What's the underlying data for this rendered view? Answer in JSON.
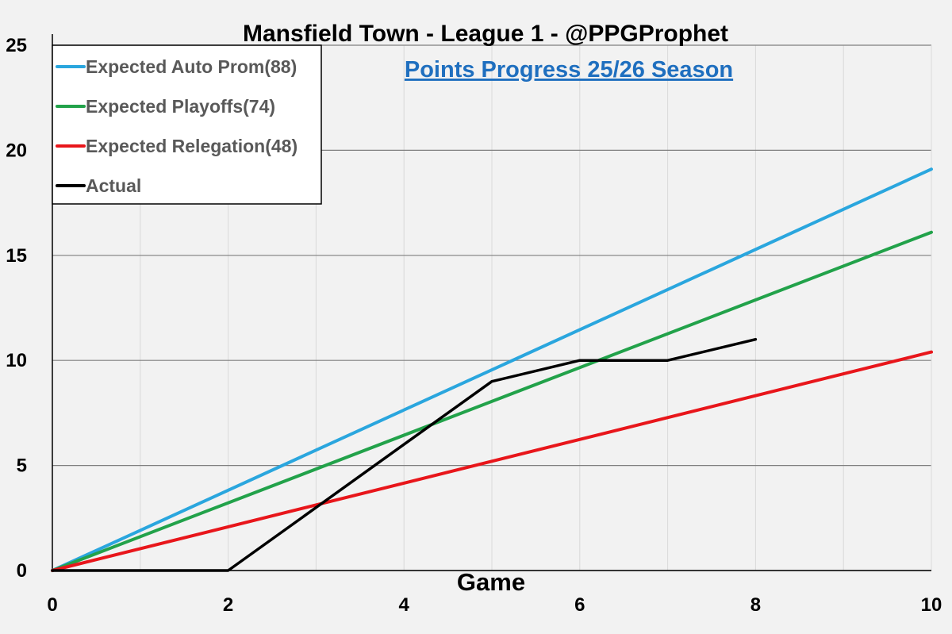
{
  "chart_data": {
    "type": "line",
    "title": "Mansfield Town - League 1 - @PPGProphet",
    "subtitle": "Points Progress 25/26 Season",
    "xlabel": "Game",
    "ylabel": "",
    "xlim": [
      0,
      10
    ],
    "ylim": [
      0,
      25
    ],
    "x_ticks": [
      "0",
      "2",
      "4",
      "6",
      "8",
      "10"
    ],
    "y_ticks": [
      "0",
      "5",
      "10",
      "15",
      "20",
      "25"
    ],
    "grid": true,
    "legend_position": "top-left",
    "series": [
      {
        "name": "Expected Auto Prom(88)",
        "color": "#2aa6de",
        "x": [
          0,
          10
        ],
        "y": [
          0,
          19.1
        ]
      },
      {
        "name": "Expected Playoffs(74)",
        "color": "#22a24a",
        "x": [
          0,
          10
        ],
        "y": [
          0,
          16.1
        ]
      },
      {
        "name": "Expected Relegation(48)",
        "color": "#e8161b",
        "x": [
          0,
          10
        ],
        "y": [
          0,
          10.4
        ]
      },
      {
        "name": "Actual",
        "color": "#000000",
        "x": [
          0,
          1,
          2,
          3,
          4,
          5,
          6,
          7,
          8
        ],
        "y": [
          0,
          0,
          0,
          3,
          6,
          9,
          10,
          10,
          11
        ]
      }
    ]
  }
}
